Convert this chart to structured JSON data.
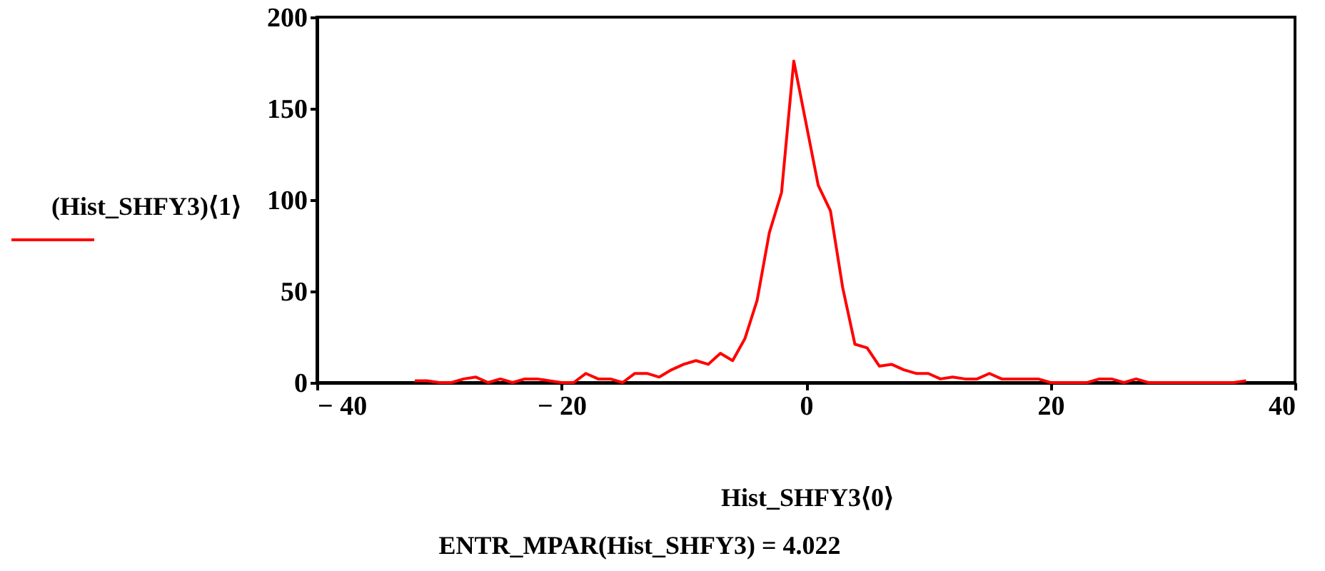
{
  "chart_data": {
    "type": "line",
    "xlabel": "Hist_SHFY3⟨0⟩",
    "ylabel": "(Hist_SHFY3)⟨1⟩",
    "annotations": [
      "ENTR_MPAR(Hist_SHFY3) = 4.022"
    ],
    "x": [
      -32,
      -31,
      -30,
      -29,
      -28,
      -27,
      -26,
      -25,
      -24,
      -23,
      -22,
      -21,
      -20,
      -19,
      -18,
      -17,
      -16,
      -15,
      -14,
      -13,
      -12,
      -11,
      -10,
      -9,
      -8,
      -7,
      -6,
      -5,
      -4,
      -3,
      -2,
      -1,
      0,
      1,
      2,
      3,
      4,
      5,
      6,
      7,
      8,
      9,
      10,
      11,
      12,
      13,
      14,
      15,
      16,
      17,
      18,
      19,
      20,
      21,
      22,
      23,
      24,
      25,
      26,
      27,
      28,
      29,
      30,
      31,
      32,
      33,
      34,
      35,
      36
    ],
    "series": [
      {
        "color": "#ff0000",
        "values": [
          1,
          1,
          0,
          0,
          2,
          3,
          0,
          2,
          0,
          2,
          2,
          1,
          0,
          0,
          5,
          2,
          2,
          0,
          5,
          5,
          3,
          7,
          10,
          12,
          10,
          16,
          12,
          24,
          45,
          82,
          104,
          176,
          142,
          108,
          94,
          52,
          21,
          19,
          9,
          10,
          7,
          5,
          5,
          2,
          3,
          2,
          2,
          5,
          2,
          2,
          2,
          2,
          0,
          0,
          0,
          0,
          2,
          2,
          0,
          2,
          0,
          0,
          0,
          0,
          0,
          0,
          0,
          0,
          1
        ]
      }
    ],
    "xlim": [
      -40,
      40
    ],
    "xticks": [
      {
        "value": -40,
        "label": "− 40"
      },
      {
        "value": -20,
        "label": "− 20"
      },
      0,
      20,
      40
    ],
    "ylim": [
      0,
      200
    ],
    "yticks": [
      0,
      50,
      100,
      150,
      200
    ],
    "grid": false,
    "marker": "none",
    "line_style": "solid"
  }
}
